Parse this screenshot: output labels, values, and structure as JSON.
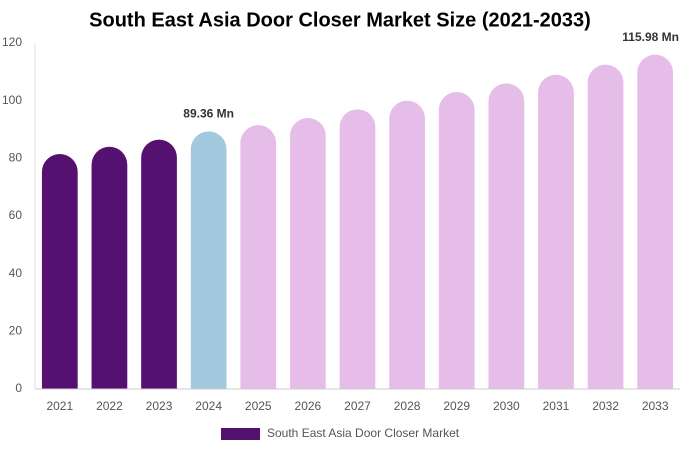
{
  "chart_data": {
    "type": "bar",
    "title": "South East Asia Door Closer Market Size (2021-2033)",
    "categories": [
      "2021",
      "2022",
      "2023",
      "2024",
      "2025",
      "2026",
      "2027",
      "2028",
      "2029",
      "2030",
      "2031",
      "2032",
      "2033"
    ],
    "series": [
      {
        "name": "South East Asia Door Closer Market",
        "color": "#541170",
        "values": [
          81.5,
          84,
          86.5,
          89.36,
          91.5,
          94,
          97,
          100,
          103,
          106,
          109,
          112.5,
          115.98
        ],
        "value_labels": [
          null,
          null,
          null,
          "89.36 Mn",
          null,
          null,
          null,
          null,
          null,
          null,
          null,
          null,
          "115.98 Mn"
        ],
        "colors": [
          "#541170",
          "#541170",
          "#541170",
          "#a3c9de",
          "#e6bde8",
          "#e6bde8",
          "#e6bde8",
          "#e6bde8",
          "#e6bde8",
          "#e6bde8",
          "#e6bde8",
          "#e6bde8",
          "#e6bde8"
        ]
      }
    ],
    "ylim": [
      0,
      120
    ],
    "yticks": [
      0,
      20,
      40,
      60,
      80,
      100,
      120
    ],
    "grid": false,
    "legend": "bottom"
  }
}
